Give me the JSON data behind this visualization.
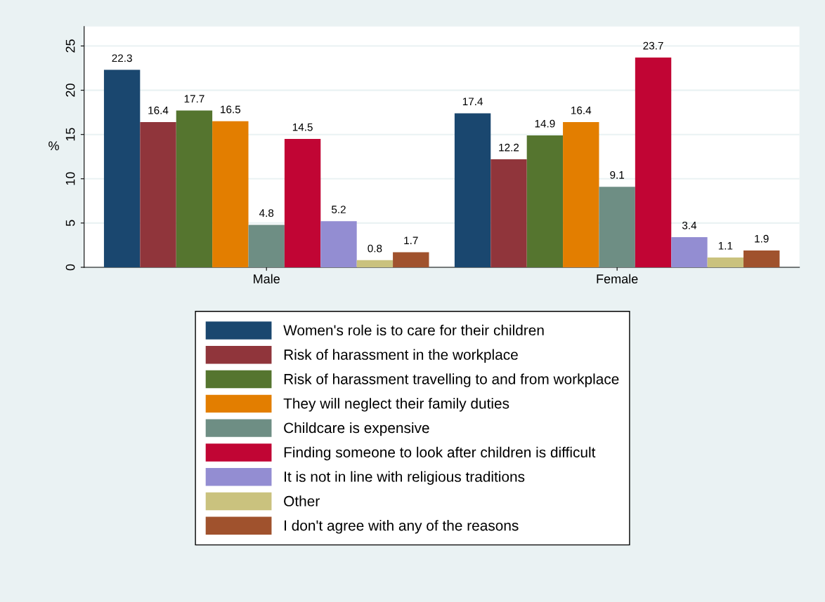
{
  "chart_data": {
    "type": "bar",
    "ylabel": "%",
    "categories": [
      "Male",
      "Female"
    ],
    "series": [
      {
        "name": "Women's role is to care for their children",
        "color": "#1a476f",
        "values": [
          22.3,
          17.4
        ]
      },
      {
        "name": "Risk of harassment in the workplace",
        "color": "#90353b",
        "values": [
          16.4,
          12.2
        ]
      },
      {
        "name": "Risk of harassment travelling to and from workplace",
        "color": "#55752f",
        "values": [
          17.7,
          14.9
        ]
      },
      {
        "name": "They will neglect their family duties",
        "color": "#e37e00",
        "values": [
          16.5,
          16.4
        ]
      },
      {
        "name": "Childcare is expensive",
        "color": "#6e8e84",
        "values": [
          4.8,
          9.1
        ]
      },
      {
        "name": "Finding someone to look after children is difficult",
        "color": "#c10534",
        "values": [
          14.5,
          23.7
        ]
      },
      {
        "name": "It is not in line with religious traditions",
        "color": "#938dd2",
        "values": [
          5.2,
          3.4
        ]
      },
      {
        "name": "Other",
        "color": "#cac27e",
        "values": [
          0.8,
          1.1
        ]
      },
      {
        "name": "I don't agree with any of the reasons",
        "color": "#a0522d",
        "values": [
          1.7,
          1.9
        ]
      }
    ],
    "ylim": [
      0,
      27.2
    ],
    "yticks": [
      0,
      5,
      10,
      15,
      20,
      25
    ],
    "grid": "y",
    "legend": "bottom",
    "data_labels": true
  }
}
